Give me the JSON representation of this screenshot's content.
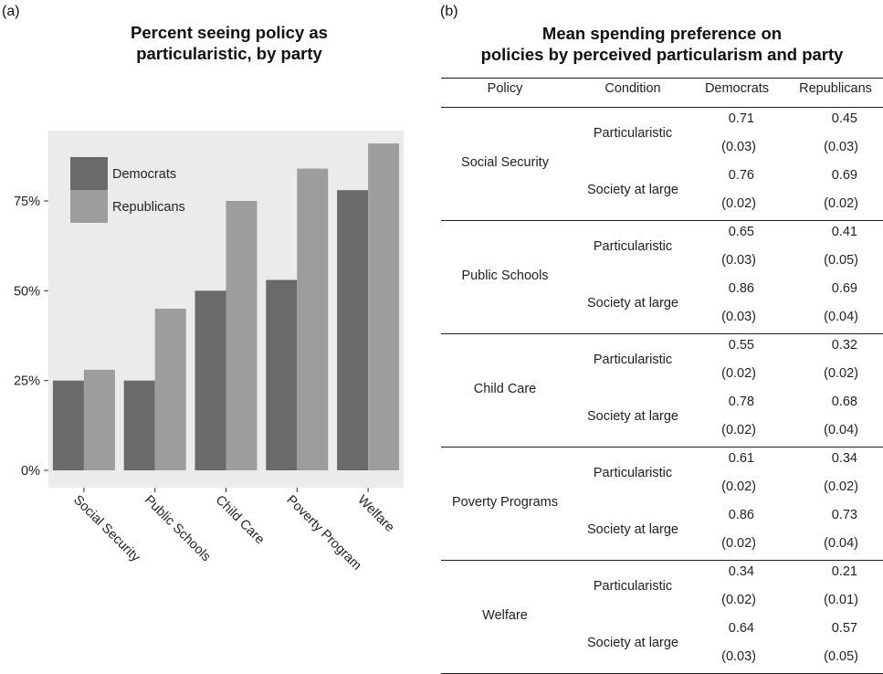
{
  "panel_a_label": "(a)",
  "panel_b_label": "(b)",
  "chart_data": {
    "type": "bar",
    "title": "Percent seeing policy as\nparticularistic, by party",
    "xlabel": "",
    "ylabel": "",
    "categories": [
      "Social Security",
      "Public Schools",
      "Child Care",
      "Poverty Program",
      "Welfare"
    ],
    "series": [
      {
        "name": "Democrats",
        "values": [
          25,
          25,
          50,
          53,
          78
        ],
        "color": "#6a6a6a"
      },
      {
        "name": "Republicans",
        "values": [
          28,
          45,
          75,
          84,
          91
        ],
        "color": "#9d9d9d"
      }
    ],
    "ylim": [
      0,
      100
    ],
    "yticks": [
      0,
      25,
      50,
      75
    ],
    "ytick_labels": [
      "0%",
      "25%",
      "50%",
      "75%"
    ],
    "grid": false,
    "panel_background": "#ebebeb",
    "legend_position": "top-left"
  },
  "table": {
    "title": "Mean spending preference on\npolicies by perceived particularism and party",
    "headers": [
      "Policy",
      "Condition",
      "Democrats",
      "Republicans"
    ],
    "rows": [
      {
        "policy": "Social Security",
        "conditions": [
          {
            "name": "Particularistic",
            "dem": "0.71",
            "dem_se": "(0.03)",
            "rep": "0.45",
            "rep_se": "(0.03)"
          },
          {
            "name": "Society at large",
            "dem": "0.76",
            "dem_se": "(0.02)",
            "rep": "0.69",
            "rep_se": "(0.02)"
          }
        ]
      },
      {
        "policy": "Public Schools",
        "conditions": [
          {
            "name": "Particularistic",
            "dem": "0.65",
            "dem_se": "(0.03)",
            "rep": "0.41",
            "rep_se": "(0.05)"
          },
          {
            "name": "Society at large",
            "dem": "0.86",
            "dem_se": "(0.03)",
            "rep": "0.69",
            "rep_se": "(0.04)"
          }
        ]
      },
      {
        "policy": "Child Care",
        "conditions": [
          {
            "name": "Particularistic",
            "dem": "0.55",
            "dem_se": "(0.02)",
            "rep": "0.32",
            "rep_se": "(0.02)"
          },
          {
            "name": "Society at large",
            "dem": "0.78",
            "dem_se": "(0.02)",
            "rep": "0.68",
            "rep_se": "(0.04)"
          }
        ]
      },
      {
        "policy": "Poverty Programs",
        "conditions": [
          {
            "name": "Particularistic",
            "dem": "0.61",
            "dem_se": "(0.02)",
            "rep": "0.34",
            "rep_se": "(0.02)"
          },
          {
            "name": "Society at large",
            "dem": "0.86",
            "dem_se": "(0.02)",
            "rep": "0.73",
            "rep_se": "(0.04)"
          }
        ]
      },
      {
        "policy": "Welfare",
        "conditions": [
          {
            "name": "Particularistic",
            "dem": "0.34",
            "dem_se": "(0.02)",
            "rep": "0.21",
            "rep_se": "(0.01)"
          },
          {
            "name": "Society at large",
            "dem": "0.64",
            "dem_se": "(0.03)",
            "rep": "0.57",
            "rep_se": "(0.05)"
          }
        ]
      }
    ]
  }
}
